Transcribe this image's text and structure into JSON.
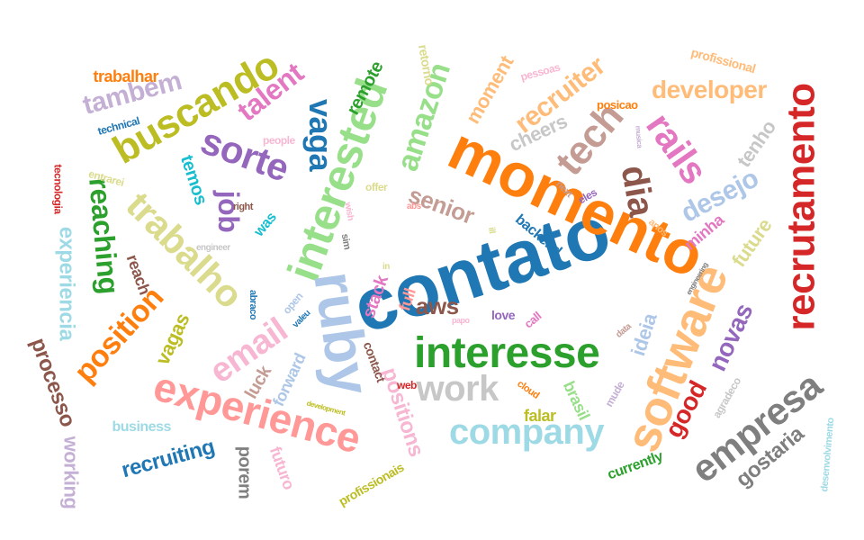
{
  "palette": {
    "blue": "#1f77b4",
    "orange": "#ff7f0e",
    "green": "#2ca02c",
    "red": "#d62728",
    "purple": "#9467bd",
    "brown": "#8c564b",
    "pink": "#e377c2",
    "gray": "#7f7f7f",
    "olive": "#bcbd22",
    "teal": "#17becf",
    "light_blue": "#aec7e8",
    "light_orange": "#ffbb78",
    "light_green": "#98df8a",
    "light_red": "#ff9896",
    "light_purple": "#c5b0d5",
    "light_brown": "#c49c94",
    "light_pink": "#f7b6d2",
    "light_gray": "#c7c7c7",
    "light_olive": "#dbdb8d",
    "light_teal": "#9edae5"
  },
  "words": [
    {
      "text": "contato",
      "color": "blue"
    },
    {
      "text": "momento",
      "color": "orange"
    },
    {
      "text": "recrutamento",
      "color": "red"
    },
    {
      "text": "interested",
      "color": "light_green"
    },
    {
      "text": "ruby",
      "color": "light_blue"
    },
    {
      "text": "software",
      "color": "light_orange"
    },
    {
      "text": "interesse",
      "color": "green"
    },
    {
      "text": "experience",
      "color": "light_red"
    },
    {
      "text": "buscando",
      "color": "olive"
    },
    {
      "text": "empresa",
      "color": "gray"
    },
    {
      "text": "company",
      "color": "light_teal"
    },
    {
      "text": "sorte",
      "color": "purple"
    },
    {
      "text": "trabalho",
      "color": "light_olive"
    },
    {
      "text": "tech",
      "color": "light_brown"
    },
    {
      "text": "rails",
      "color": "pink"
    },
    {
      "text": "work",
      "color": "light_gray"
    },
    {
      "text": "email",
      "color": "light_pink"
    },
    {
      "text": "dia",
      "color": "brown"
    },
    {
      "text": "position",
      "color": "orange"
    },
    {
      "text": "vaga",
      "color": "blue"
    },
    {
      "text": "desejo",
      "color": "light_blue"
    },
    {
      "text": "amazon",
      "color": "light_green"
    },
    {
      "text": "recruiter",
      "color": "light_orange"
    },
    {
      "text": "developer",
      "color": "light_orange"
    },
    {
      "text": "reaching",
      "color": "green"
    },
    {
      "text": "tambem",
      "color": "light_purple"
    },
    {
      "text": "talent",
      "color": "pink"
    },
    {
      "text": "job",
      "color": "purple"
    },
    {
      "text": "experiencia",
      "color": "light_teal"
    },
    {
      "text": "processo",
      "color": "brown"
    },
    {
      "text": "novas",
      "color": "purple"
    },
    {
      "text": "positions",
      "color": "light_pink"
    },
    {
      "text": "good",
      "color": "red"
    },
    {
      "text": "aws",
      "color": "brown"
    },
    {
      "text": "senior",
      "color": "light_brown"
    },
    {
      "text": "recruiting",
      "color": "blue"
    },
    {
      "text": "gostaria",
      "color": "gray"
    },
    {
      "text": "working",
      "color": "light_purple"
    },
    {
      "text": "vagas",
      "color": "olive"
    },
    {
      "text": "temos",
      "color": "teal"
    },
    {
      "text": "tenho",
      "color": "light_gray"
    },
    {
      "text": "future",
      "color": "light_olive"
    },
    {
      "text": "cheers",
      "color": "light_gray"
    },
    {
      "text": "moment",
      "color": "light_orange"
    },
    {
      "text": "ideia",
      "color": "light_blue"
    },
    {
      "text": "remote",
      "color": "green"
    },
    {
      "text": "trabalhar",
      "color": "orange"
    },
    {
      "text": "stack",
      "color": "pink"
    },
    {
      "text": "porem",
      "color": "gray"
    },
    {
      "text": "reach",
      "color": "brown"
    },
    {
      "text": "luck",
      "color": "light_brown"
    },
    {
      "text": "brasil",
      "color": "light_green"
    },
    {
      "text": "falar",
      "color": "olive"
    },
    {
      "text": "futuro",
      "color": "light_pink"
    },
    {
      "text": "minha",
      "color": "pink"
    },
    {
      "text": "profissional",
      "color": "light_orange"
    },
    {
      "text": "backend",
      "color": "blue"
    },
    {
      "text": "full",
      "color": "light_red"
    },
    {
      "text": "forward",
      "color": "light_blue"
    },
    {
      "text": "retorno",
      "color": "light_olive"
    },
    {
      "text": "currently",
      "color": "green"
    },
    {
      "text": "profissionais",
      "color": "olive"
    },
    {
      "text": "tecnologia",
      "color": "red"
    },
    {
      "text": "business",
      "color": "light_teal"
    },
    {
      "text": "contact",
      "color": "brown"
    },
    {
      "text": "technical",
      "color": "blue"
    },
    {
      "text": "love",
      "color": "purple"
    },
    {
      "text": "call",
      "color": "pink"
    },
    {
      "text": "was",
      "color": "teal"
    },
    {
      "text": "posicao",
      "color": "orange"
    },
    {
      "text": "agradeco",
      "color": "light_gray"
    },
    {
      "text": "mude",
      "color": "light_purple"
    },
    {
      "text": "pessoas",
      "color": "light_pink"
    },
    {
      "text": "offer",
      "color": "light_olive"
    },
    {
      "text": "open",
      "color": "light_blue"
    },
    {
      "text": "entrarei",
      "color": "light_olive"
    },
    {
      "text": "people",
      "color": "light_pink"
    },
    {
      "text": "right",
      "color": "brown"
    },
    {
      "text": "engineer",
      "color": "light_gray"
    },
    {
      "text": "abraco",
      "color": "blue"
    },
    {
      "text": "valeu",
      "color": "blue"
    },
    {
      "text": "web",
      "color": "red"
    },
    {
      "text": "cloud",
      "color": "orange"
    },
    {
      "text": "eles",
      "color": "purple"
    },
    {
      "text": "next",
      "color": "light_brown"
    },
    {
      "text": "anos",
      "color": "light_orange"
    },
    {
      "text": "data",
      "color": "light_brown"
    },
    {
      "text": "papo",
      "color": "light_pink"
    },
    {
      "text": "abs",
      "color": "light_red"
    },
    {
      "text": "sim",
      "color": "gray"
    },
    {
      "text": "wish",
      "color": "light_pink"
    },
    {
      "text": "ill",
      "color": "light_olive"
    },
    {
      "text": "in",
      "color": "light_olive"
    },
    {
      "text": "development",
      "color": "olive"
    },
    {
      "text": "desenvolvimento",
      "color": "light_teal"
    },
    {
      "text": "engineering",
      "color": "gray"
    },
    {
      "text": "musica",
      "color": "light_purple"
    }
  ]
}
